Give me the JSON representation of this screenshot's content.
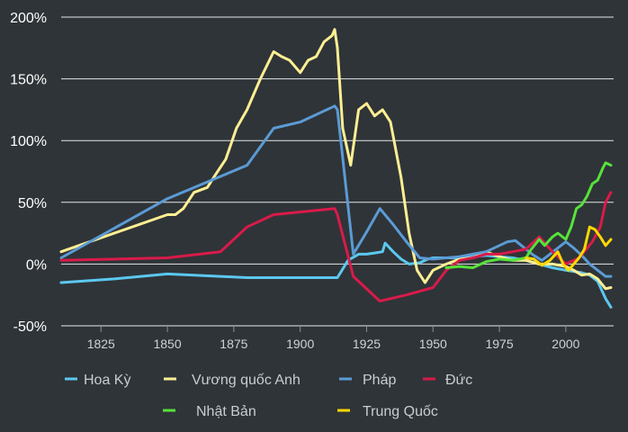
{
  "chart_data": {
    "type": "line",
    "xlim": [
      1810,
      2018
    ],
    "ylim": [
      -50,
      200
    ],
    "y_ticks": [
      {
        "value": 200,
        "label": "200%"
      },
      {
        "value": 150,
        "label": "150%"
      },
      {
        "value": 100,
        "label": "100%"
      },
      {
        "value": 50,
        "label": "50%"
      },
      {
        "value": 0,
        "label": "0%"
      },
      {
        "value": -50,
        "label": "-50%"
      }
    ],
    "x_ticks": [
      {
        "value": 1825,
        "label": "1825"
      },
      {
        "value": 1850,
        "label": "1850"
      },
      {
        "value": 1875,
        "label": "1875"
      },
      {
        "value": 1900,
        "label": "1900"
      },
      {
        "value": 1925,
        "label": "1925"
      },
      {
        "value": 1950,
        "label": "1950"
      },
      {
        "value": 1975,
        "label": "1975"
      },
      {
        "value": 2000,
        "label": "2000"
      }
    ],
    "grid": "horizontal",
    "legend_placement": "bottom",
    "series": [
      {
        "name": "Hoa Kỳ",
        "color": "#5bc8ef",
        "x": [
          1810,
          1830,
          1850,
          1870,
          1880,
          1900,
          1913,
          1914,
          1918,
          1922,
          1925,
          1928,
          1931,
          1932,
          1935,
          1938,
          1941,
          1945,
          1948,
          1950,
          1955,
          1960,
          1965,
          1970,
          1975,
          1980,
          1985,
          1990,
          1995,
          2000,
          2003,
          2006,
          2009,
          2012,
          2015,
          2017
        ],
        "y": [
          -15,
          -12,
          -8,
          -10,
          -11,
          -11,
          -11,
          -11,
          3,
          8,
          8,
          9,
          10,
          17,
          10,
          4,
          0,
          1,
          4,
          5,
          5,
          5,
          6,
          7,
          6,
          5,
          3,
          0,
          -3,
          -5,
          -6,
          -7,
          -9,
          -14,
          -28,
          -35
        ]
      },
      {
        "name": "Vương quốc Anh",
        "color": "#ffef93",
        "x": [
          1810,
          1830,
          1850,
          1853,
          1856,
          1860,
          1865,
          1868,
          1872,
          1876,
          1880,
          1885,
          1890,
          1893,
          1896,
          1900,
          1903,
          1906,
          1909,
          1912,
          1913,
          1914,
          1916,
          1919,
          1922,
          1925,
          1928,
          1931,
          1934,
          1938,
          1941,
          1944,
          1947,
          1950,
          1955,
          1960,
          1965,
          1970,
          1975,
          1980,
          1985,
          1990,
          1995,
          2000,
          2003,
          2006,
          2009,
          2012,
          2015,
          2017
        ],
        "y": [
          10,
          25,
          40,
          40,
          45,
          58,
          62,
          72,
          85,
          110,
          125,
          150,
          172,
          168,
          165,
          155,
          165,
          168,
          180,
          185,
          190,
          175,
          110,
          80,
          125,
          130,
          120,
          125,
          115,
          70,
          25,
          -5,
          -15,
          -5,
          0,
          4,
          5,
          10,
          6,
          3,
          3,
          0,
          0,
          -2,
          -5,
          -9,
          -8,
          -12,
          -20,
          -19
        ]
      },
      {
        "name": "Pháp",
        "color": "#5b9bd5",
        "x": [
          1810,
          1850,
          1880,
          1890,
          1900,
          1913,
          1914,
          1920,
          1925,
          1930,
          1935,
          1940,
          1945,
          1950,
          1955,
          1960,
          1965,
          1970,
          1975,
          1978,
          1981,
          1985,
          1988,
          1991,
          1994,
          1997,
          2000,
          2003,
          2006,
          2009,
          2012,
          2015,
          2017
        ],
        "y": [
          5,
          53,
          80,
          110,
          115,
          128,
          125,
          8,
          26,
          45,
          32,
          18,
          5,
          4,
          5,
          6,
          8,
          10,
          15,
          18,
          19,
          12,
          7,
          3,
          8,
          13,
          18,
          13,
          7,
          0,
          -5,
          -10,
          -10
        ]
      },
      {
        "name": "Đức",
        "color": "#d81b4a",
        "x": [
          1810,
          1850,
          1870,
          1880,
          1890,
          1913,
          1914,
          1920,
          1930,
          1940,
          1950,
          1955,
          1960,
          1965,
          1970,
          1975,
          1980,
          1985,
          1990,
          1995,
          2000,
          2005,
          2010,
          2013,
          2015,
          2017
        ],
        "y": [
          3,
          5,
          10,
          30,
          40,
          45,
          40,
          -10,
          -30,
          -25,
          -19,
          -5,
          3,
          5,
          8,
          8,
          10,
          12,
          22,
          10,
          0,
          5,
          18,
          30,
          50,
          58
        ]
      },
      {
        "name": "Nhật Bản",
        "color": "#56e23a",
        "x": [
          1955,
          1960,
          1965,
          1970,
          1975,
          1980,
          1985,
          1987,
          1990,
          1992,
          1995,
          1997,
          2000,
          2002,
          2004,
          2006,
          2008,
          2010,
          2012,
          2014,
          2015,
          2017
        ],
        "y": [
          -3,
          -2,
          -3,
          2,
          4,
          3,
          5,
          12,
          20,
          15,
          22,
          25,
          20,
          30,
          45,
          48,
          55,
          65,
          68,
          78,
          82,
          80
        ]
      },
      {
        "name": "Trung Quốc",
        "color": "#ffd800",
        "x": [
          1985,
          1988,
          1991,
          1994,
          1997,
          1999,
          2001,
          2003,
          2005,
          2007,
          2009,
          2011,
          2013,
          2015,
          2017
        ],
        "y": [
          5,
          4,
          -1,
          3,
          10,
          0,
          -5,
          0,
          5,
          12,
          30,
          28,
          22,
          15,
          20
        ]
      }
    ]
  }
}
